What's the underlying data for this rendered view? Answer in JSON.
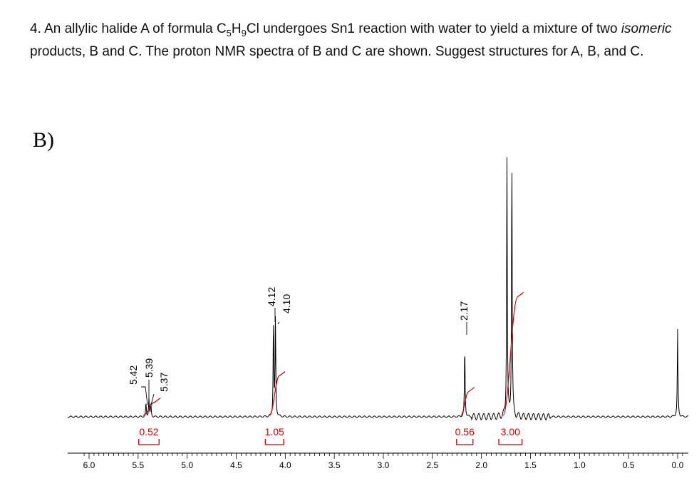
{
  "question": {
    "number": "4.",
    "part1": "An allylic halide A of formula C",
    "sub1": "5",
    "part2": "H",
    "sub2": "9",
    "part3": "Cl undergoes Sn1 reaction with water to yield a mixture of two",
    "italic": "isomeric",
    "part4": "products, B and C. The proton NMR spectra of B and C are shown. Suggest structures for A, B, and C."
  },
  "panel_label": "B)",
  "chart_data": {
    "type": "line",
    "xlim": [
      6.1,
      -0.05
    ],
    "x_ticks": [
      "6.0",
      "5.5",
      "5.0",
      "4.5",
      "4.0",
      "3.5",
      "3.0",
      "2.5",
      "2.0",
      "1.5",
      "1.0",
      "0.5",
      "0.0"
    ],
    "x_tick_values": [
      6.0,
      5.5,
      5.0,
      4.5,
      4.0,
      3.5,
      3.0,
      2.5,
      2.0,
      1.5,
      1.0,
      0.5,
      0.0
    ],
    "peaks": [
      {
        "ppm": 5.42,
        "height": 0.05
      },
      {
        "ppm": 5.39,
        "height": 0.07
      },
      {
        "ppm": 5.37,
        "height": 0.05
      },
      {
        "ppm": 4.12,
        "height": 0.37
      },
      {
        "ppm": 4.1,
        "height": 0.37
      },
      {
        "ppm": 2.17,
        "height": 0.27
      },
      {
        "ppm": 1.74,
        "height": 0.99
      },
      {
        "ppm": 1.69,
        "height": 1.0
      },
      {
        "ppm": 0.0,
        "height": 0.33
      }
    ],
    "peak_labels": [
      {
        "text": "5.42",
        "ppm": 5.42
      },
      {
        "text": "5.39",
        "ppm": 5.39
      },
      {
        "text": "5.37",
        "ppm": 5.37
      },
      {
        "text": "4.12",
        "ppm": 4.12
      },
      {
        "text": "4.10",
        "ppm": 4.1
      },
      {
        "text": "2.17",
        "ppm": 2.17
      }
    ],
    "integrals": [
      {
        "text": "0.52",
        "from": 5.45,
        "to": 5.33,
        "rise": 0.05
      },
      {
        "text": "1.05",
        "from": 4.16,
        "to": 4.06,
        "rise": 0.15
      },
      {
        "text": "0.56",
        "from": 2.21,
        "to": 2.13,
        "rise": 0.09
      },
      {
        "text": "3.00",
        "from": 1.78,
        "to": 1.63,
        "rise": 0.45
      }
    ],
    "colors": {
      "spectrum": "#000000",
      "integral": "#cc0000"
    }
  }
}
